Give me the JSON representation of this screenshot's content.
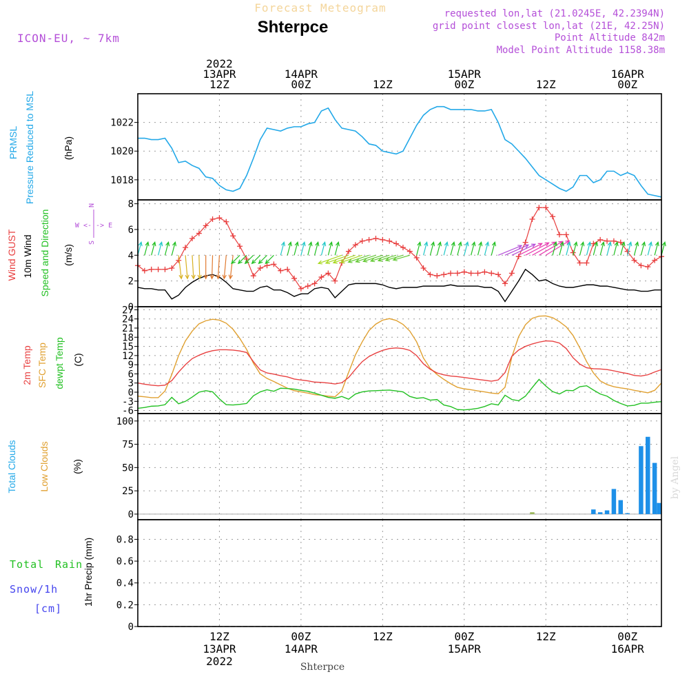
{
  "header": {
    "forecast_label": "Forecast Meteogram",
    "station": "Shterpce",
    "model": "ICON-EU, ~ 7km",
    "info": [
      "requested lon,lat (21.0245E, 42.2394N)",
      "grid point closest lon,lat (21E, 42.25N)",
      "Point Altitude 842m",
      "Model Point Altitude 1158.38m"
    ]
  },
  "colors": {
    "pressure": "#22a8e8",
    "gust": "#e83c3c",
    "wind": "#000000",
    "temp2m": "#e84040",
    "sfc": "#e0a030",
    "dewpt": "#22c022",
    "total_clouds": "#1e90e8",
    "low_clouds": "#e0a030",
    "info_purple": "#b44fd8",
    "rain": "#22c022",
    "snow": "#4444ee"
  },
  "time_axis": {
    "top_labels": [
      {
        "t": 12,
        "lines": [
          "2022",
          "13APR",
          "12Z"
        ]
      },
      {
        "t": 24,
        "lines": [
          "14APR",
          "00Z"
        ]
      },
      {
        "t": 36,
        "lines": [
          "12Z"
        ]
      },
      {
        "t": 48,
        "lines": [
          "15APR",
          "00Z"
        ]
      },
      {
        "t": 60,
        "lines": [
          "12Z"
        ]
      },
      {
        "t": 72,
        "lines": [
          "16APR",
          "00Z"
        ]
      }
    ],
    "bottom_labels": [
      {
        "t": 12,
        "lines": [
          "12Z",
          "13APR",
          "2022"
        ]
      },
      {
        "t": 24,
        "lines": [
          "00Z",
          "14APR"
        ]
      },
      {
        "t": 36,
        "lines": [
          "12Z"
        ]
      },
      {
        "t": 48,
        "lines": [
          "00Z",
          "15APR"
        ]
      },
      {
        "t": 60,
        "lines": [
          "12Z"
        ]
      },
      {
        "t": 72,
        "lines": [
          "00Z",
          "16APR"
        ]
      }
    ],
    "footer_station": "Shterpce",
    "credit": "by Angel"
  },
  "panels": {
    "pressure": {
      "labels": [
        "PRMSL",
        "Pressure Reduced to MSL",
        "(hPa)"
      ],
      "yticks": [
        "1018",
        "1020",
        "1022"
      ]
    },
    "wind": {
      "labels": [
        "Wind GUST",
        "10m Wind",
        "Speed and Direction",
        "(m/s)"
      ],
      "yticks": [
        "0",
        "2",
        "4",
        "6",
        "8"
      ],
      "compass": [
        "N",
        "W <-|-> E",
        "S"
      ]
    },
    "temp": {
      "labels": [
        "2m Temp",
        "SFC Temp",
        "dewpt Temp",
        "(C)"
      ],
      "yticks": [
        "-6",
        "-3",
        "0",
        "3",
        "6",
        "9",
        "12",
        "15",
        "18",
        "21",
        "24",
        "27"
      ]
    },
    "clouds": {
      "labels": [
        "Total Clouds",
        "Low Clouds",
        "(%)"
      ],
      "yticks": [
        "0",
        "25",
        "50",
        "75",
        "100"
      ]
    },
    "precip": {
      "labels": [
        "Total",
        "Rain",
        "Snow/1h",
        "[cm]",
        "1hr Precip (mm)"
      ],
      "yticks": [
        "0",
        "0.2",
        "0.4",
        "0.6",
        "0.8"
      ]
    }
  },
  "chart_data": [
    {
      "type": "line",
      "title": "PRMSL Pressure Reduced to MSL",
      "ylabel": "(hPa)",
      "ylim": [
        1016.6,
        1024.0
      ],
      "x_hours": [
        0,
        1,
        2,
        3,
        4,
        5,
        6,
        7,
        8,
        9,
        10,
        11,
        12,
        13,
        14,
        15,
        16,
        17,
        18,
        19,
        20,
        21,
        22,
        23,
        24,
        25,
        26,
        27,
        28,
        29,
        30,
        31,
        32,
        33,
        34,
        35,
        36,
        37,
        38,
        39,
        40,
        41,
        42,
        43,
        44,
        45,
        46,
        47,
        48,
        49,
        50,
        51,
        52,
        53,
        54,
        55,
        56,
        57,
        58,
        59,
        60,
        61,
        62,
        63,
        64,
        65,
        66,
        67,
        68,
        69,
        70,
        71,
        72,
        73,
        74,
        75,
        76,
        77
      ],
      "values": [
        1020.9,
        1020.9,
        1020.8,
        1020.8,
        1020.9,
        1020.2,
        1019.2,
        1019.3,
        1019.0,
        1018.8,
        1018.2,
        1018.1,
        1017.6,
        1017.3,
        1017.2,
        1017.4,
        1018.3,
        1019.5,
        1020.8,
        1021.6,
        1021.5,
        1021.4,
        1021.6,
        1021.7,
        1021.7,
        1021.9,
        1022.0,
        1022.8,
        1023.0,
        1022.2,
        1021.6,
        1021.5,
        1021.4,
        1021.0,
        1020.5,
        1020.4,
        1020.0,
        1019.9,
        1019.8,
        1020.0,
        1020.9,
        1021.8,
        1022.5,
        1022.9,
        1023.1,
        1023.1,
        1022.9,
        1022.9,
        1022.9,
        1022.9,
        1022.8,
        1022.8,
        1022.9,
        1022.0,
        1020.8,
        1020.5,
        1020.0,
        1019.5,
        1018.9,
        1018.3,
        1018.0,
        1017.7,
        1017.4,
        1017.2,
        1017.5,
        1018.3,
        1018.3,
        1017.8,
        1018.0,
        1018.6,
        1018.6,
        1018.3,
        1018.5,
        1018.3,
        1017.6,
        1017.0,
        1016.9,
        1016.8
      ]
    },
    {
      "type": "line",
      "title": "Wind GUST / 10m Wind Speed and Direction",
      "ylabel": "(m/s)",
      "ylim": [
        0,
        8.3
      ],
      "x_hours": [
        0,
        1,
        2,
        3,
        4,
        5,
        6,
        7,
        8,
        9,
        10,
        11,
        12,
        13,
        14,
        15,
        16,
        17,
        18,
        19,
        20,
        21,
        22,
        23,
        24,
        25,
        26,
        27,
        28,
        29,
        30,
        31,
        32,
        33,
        34,
        35,
        36,
        37,
        38,
        39,
        40,
        41,
        42,
        43,
        44,
        45,
        46,
        47,
        48,
        49,
        50,
        51,
        52,
        53,
        54,
        55,
        56,
        57,
        58,
        59,
        60,
        61,
        62,
        63,
        64,
        65,
        66,
        67,
        68,
        69,
        70,
        71,
        72,
        73,
        74,
        75,
        76,
        77
      ],
      "series": [
        {
          "name": "Wind GUST",
          "values": [
            3.2,
            2.8,
            2.9,
            2.9,
            2.9,
            3.0,
            3.6,
            4.6,
            5.3,
            5.7,
            6.3,
            6.8,
            6.9,
            6.6,
            5.5,
            4.7,
            3.7,
            2.4,
            3.0,
            3.2,
            3.3,
            2.8,
            2.9,
            2.2,
            1.4,
            1.6,
            1.8,
            2.3,
            2.6,
            2.0,
            3.4,
            4.3,
            4.8,
            5.1,
            5.2,
            5.3,
            5.2,
            5.1,
            4.9,
            4.6,
            4.3,
            3.8,
            3.0,
            2.5,
            2.4,
            2.5,
            2.6,
            2.6,
            2.7,
            2.6,
            2.6,
            2.7,
            2.6,
            2.5,
            1.8,
            2.6,
            3.9,
            5.0,
            6.8,
            7.7,
            7.7,
            7.0,
            5.6,
            5.6,
            4.2,
            3.4,
            3.4,
            4.9,
            5.2,
            5.1,
            5.1,
            5.0,
            4.3,
            3.6,
            3.2,
            3.1,
            3.6,
            3.9
          ]
        },
        {
          "name": "10m Wind",
          "values": [
            1.5,
            1.4,
            1.4,
            1.3,
            1.3,
            0.6,
            0.9,
            1.5,
            1.9,
            2.2,
            2.4,
            2.5,
            2.3,
            1.9,
            1.4,
            1.3,
            1.2,
            1.2,
            1.5,
            1.6,
            1.3,
            1.3,
            1.1,
            0.8,
            1.0,
            1.0,
            1.4,
            1.5,
            1.4,
            0.7,
            1.2,
            1.7,
            1.8,
            1.8,
            1.8,
            1.8,
            1.7,
            1.5,
            1.4,
            1.5,
            1.5,
            1.5,
            1.6,
            1.6,
            1.6,
            1.6,
            1.7,
            1.6,
            1.6,
            1.6,
            1.6,
            1.5,
            1.5,
            1.2,
            0.4,
            1.2,
            2.0,
            2.9,
            2.5,
            2.0,
            2.1,
            1.8,
            1.6,
            1.5,
            1.5,
            1.6,
            1.7,
            1.7,
            1.6,
            1.6,
            1.5,
            1.4,
            1.3,
            1.3,
            1.2,
            1.2,
            1.3,
            1.3
          ]
        }
      ]
    },
    {
      "type": "line",
      "title": "2m Temp / SFC Temp / dewpt Temp",
      "ylabel": "(C)",
      "ylim": [
        -7,
        28
      ],
      "x_hours": [
        0,
        1,
        2,
        3,
        4,
        5,
        6,
        7,
        8,
        9,
        10,
        11,
        12,
        13,
        14,
        15,
        16,
        17,
        18,
        19,
        20,
        21,
        22,
        23,
        24,
        25,
        26,
        27,
        28,
        29,
        30,
        31,
        32,
        33,
        34,
        35,
        36,
        37,
        38,
        39,
        40,
        41,
        42,
        43,
        44,
        45,
        46,
        47,
        48,
        49,
        50,
        51,
        52,
        53,
        54,
        55,
        56,
        57,
        58,
        59,
        60,
        61,
        62,
        63,
        64,
        65,
        66,
        67,
        68,
        69,
        70,
        71,
        72,
        73,
        74,
        75,
        76,
        77
      ],
      "series": [
        {
          "name": "2m Temp",
          "values": [
            3.0,
            2.6,
            2.3,
            2.1,
            2.3,
            3.8,
            6.6,
            9.0,
            11.0,
            12.1,
            13.0,
            13.6,
            13.9,
            13.9,
            13.8,
            13.5,
            13.0,
            10.0,
            7.3,
            6.3,
            5.9,
            5.4,
            5.0,
            4.3,
            4.0,
            3.7,
            3.3,
            3.2,
            3.0,
            2.7,
            3.1,
            4.8,
            7.5,
            10.0,
            11.7,
            12.8,
            13.7,
            14.3,
            14.5,
            14.3,
            13.7,
            12.0,
            9.3,
            7.5,
            6.3,
            5.7,
            5.3,
            5.1,
            4.8,
            4.5,
            4.2,
            3.9,
            3.6,
            4.0,
            6.4,
            11.8,
            13.8,
            15.0,
            15.8,
            16.4,
            16.8,
            16.7,
            16.1,
            14.3,
            11.3,
            9.2,
            8.0,
            7.7,
            7.6,
            7.4,
            7.0,
            6.5,
            6.1,
            5.5,
            5.3,
            5.7,
            6.6,
            7.4
          ]
        },
        {
          "name": "SFC Temp",
          "values": [
            -1.3,
            -1.5,
            -1.8,
            -1.8,
            0.4,
            5.8,
            12.0,
            16.8,
            20.0,
            22.4,
            23.4,
            23.9,
            23.6,
            22.6,
            20.6,
            17.6,
            14.0,
            9.5,
            6.0,
            4.5,
            3.5,
            2.4,
            1.3,
            0.5,
            0.1,
            -0.3,
            -0.8,
            -1.0,
            -1.3,
            -1.5,
            0.5,
            6.5,
            12.2,
            16.5,
            20.2,
            22.3,
            23.6,
            24.1,
            23.5,
            22.2,
            20.0,
            16.5,
            11.2,
            7.8,
            5.8,
            4.2,
            2.8,
            1.6,
            1.1,
            0.8,
            0.4,
            0.1,
            -0.3,
            -0.5,
            1.6,
            11.5,
            18.2,
            22.1,
            24.2,
            24.9,
            25.0,
            24.4,
            23.1,
            21.4,
            18.6,
            14.5,
            10.0,
            6.3,
            3.7,
            2.5,
            1.8,
            1.4,
            1.1,
            0.6,
            0.2,
            -0.2,
            0.6,
            3.0
          ]
        },
        {
          "name": "dewpt Temp",
          "values": [
            -5.3,
            -5.0,
            -4.6,
            -4.5,
            -4.1,
            -1.7,
            -3.8,
            -3.0,
            -1.6,
            0.0,
            0.5,
            0.1,
            -2.2,
            -4.1,
            -4.2,
            -4.0,
            -3.7,
            -1.2,
            0.1,
            0.8,
            0.3,
            1.3,
            1.2,
            1.0,
            0.6,
            0.3,
            -0.3,
            -1.0,
            -1.7,
            -2.0,
            -1.4,
            -2.3,
            -0.6,
            0.1,
            0.4,
            0.5,
            0.6,
            0.7,
            0.4,
            0.1,
            -1.4,
            -2.0,
            -1.8,
            -2.6,
            -2.4,
            -4.2,
            -4.7,
            -5.7,
            -5.8,
            -5.6,
            -5.3,
            -4.7,
            -3.8,
            -4.2,
            -1.0,
            -2.4,
            -2.8,
            -1.3,
            1.5,
            4.2,
            2.0,
            0.2,
            -0.6,
            0.6,
            0.5,
            1.8,
            2.1,
            0.7,
            -0.6,
            -1.3,
            -2.7,
            -3.7,
            -4.5,
            -4.3,
            -3.6,
            -3.6,
            -3.3,
            -3.1
          ]
        }
      ]
    },
    {
      "type": "bar",
      "title": "Total Clouds / Low Clouds",
      "ylabel": "(%)",
      "ylim": [
        -6,
        108
      ],
      "series": [
        {
          "name": "Total Clouds",
          "x_hours": [
            67,
            68,
            69,
            70,
            71,
            72,
            73,
            74,
            75,
            76,
            77
          ],
          "values": [
            5,
            2,
            4,
            27,
            15,
            1,
            0,
            73,
            83,
            55,
            12
          ]
        },
        {
          "name": "Low Clouds",
          "x_hours": [
            58
          ],
          "values": [
            2
          ]
        }
      ]
    },
    {
      "type": "bar",
      "title": "Total Rain / Snow/1h",
      "ylabel": "1hr Precip (mm)",
      "ylim": [
        0,
        0.98
      ],
      "series": [
        {
          "name": "Total Rain",
          "x_hours": [],
          "values": []
        },
        {
          "name": "Snow/1h",
          "x_hours": [],
          "values": []
        }
      ]
    }
  ]
}
